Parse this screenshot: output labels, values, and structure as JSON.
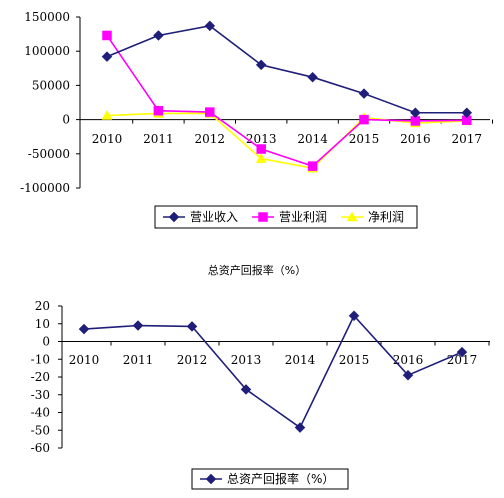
{
  "chart_data": [
    {
      "type": "line",
      "categories": [
        "2010",
        "2011",
        "2012",
        "2013",
        "2014",
        "2015",
        "2016",
        "2017"
      ],
      "ylim": [
        -100000,
        150000
      ],
      "yticks": [
        -100000,
        -50000,
        0,
        50000,
        100000,
        150000
      ],
      "ytick_labels": [
        "-100000",
        "-50000",
        "0",
        "50000",
        "100000",
        "150000"
      ],
      "legend_position": "bottom",
      "series": [
        {
          "name": "营业收入",
          "color": "#1f1f7a",
          "marker": "diamond",
          "values": [
            92000,
            123000,
            137000,
            80000,
            62000,
            38000,
            10000,
            10000
          ]
        },
        {
          "name": "营业利润",
          "color": "#ff00ff",
          "marker": "square",
          "values": [
            123000,
            13000,
            11000,
            -43000,
            -68000,
            0,
            -2000,
            -1000
          ]
        },
        {
          "name": "净利润",
          "color": "#ffff00",
          "marker": "triangle",
          "values": [
            6000,
            9000,
            9000,
            -57000,
            -71000,
            3000,
            -5000,
            -2000
          ]
        }
      ]
    },
    {
      "type": "line",
      "title": "总资产回报率（%）",
      "categories": [
        "2010",
        "2011",
        "2012",
        "2013",
        "2014",
        "2015",
        "2016",
        "2017"
      ],
      "ylim": [
        -60,
        20
      ],
      "yticks": [
        -60,
        -50,
        -40,
        -30,
        -20,
        -10,
        0,
        10,
        20
      ],
      "ytick_labels": [
        "-60",
        "-50",
        "-40",
        "-30",
        "-20",
        "-10",
        "0",
        "10",
        "20"
      ],
      "legend_position": "bottom",
      "series": [
        {
          "name": "总资产回报率（%）",
          "color": "#1f1f7a",
          "marker": "diamond",
          "values": [
            7,
            9,
            8.5,
            -27,
            -48.5,
            14.5,
            -19,
            -6
          ]
        }
      ]
    }
  ]
}
